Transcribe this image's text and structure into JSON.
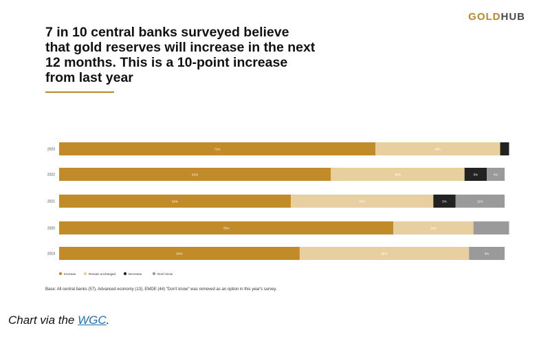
{
  "logo": {
    "gold_part": "GOLD",
    "hub_part": "HUB"
  },
  "headline_lines": [
    "7 in 10 central banks surveyed believe",
    "that gold reserves will increase in the next",
    "12 months. This is a 10-point increase",
    "from last year"
  ],
  "chart_data": {
    "type": "bar",
    "orientation": "horizontal",
    "stacked": true,
    "categories": [
      "2023",
      "2022",
      "2021",
      "2020",
      "2019"
    ],
    "series": [
      {
        "name": "Increase",
        "color": "#c08b28",
        "values": [
          71,
          61,
          52,
          75,
          54
        ],
        "labels": [
          "71%",
          "61%",
          "52%",
          "75%",
          "54%"
        ]
      },
      {
        "name": "Remain unchanged",
        "color": "#e8cf9f",
        "values": [
          28,
          30,
          32,
          18,
          38
        ],
        "labels": [
          "28%",
          "30%",
          "32%",
          "18%",
          "38%"
        ]
      },
      {
        "name": "Decrease",
        "color": "#222222",
        "values": [
          2,
          5,
          5,
          0,
          0
        ],
        "labels": [
          "",
          "5%",
          "5%",
          "",
          ""
        ]
      },
      {
        "name": "Don't know",
        "color": "#9a9a9a",
        "values": [
          0,
          4,
          11,
          8,
          8
        ],
        "labels": [
          "",
          "4%",
          "11%",
          "",
          "8%"
        ]
      }
    ],
    "xlim": [
      0,
      100
    ],
    "grid": false,
    "legend": "bottom-left"
  },
  "footnote": "Base: All central banks (57), Advanced economy (13), EMDE (44) \"Don't know\" was removed as an option in this year's survey.",
  "caption": {
    "prefix": "Chart via the ",
    "link": "WGC",
    "suffix": "."
  }
}
